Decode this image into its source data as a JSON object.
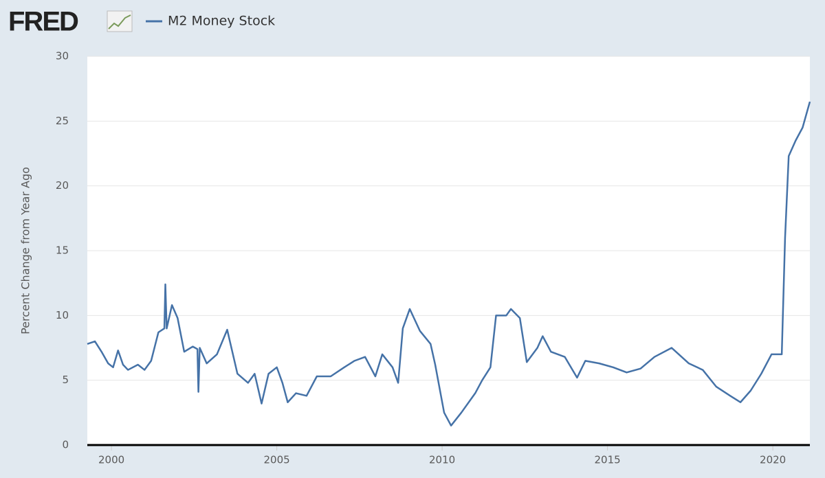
{
  "chart_data": {
    "type": "line",
    "logo": "FRED",
    "ylabel": "Percent Change from Year Ago",
    "x": [
      1999.27,
      1999.5,
      1999.7,
      1999.9,
      2000.05,
      2000.2,
      2000.35,
      2000.5,
      2000.8,
      2001.0,
      2001.2,
      2001.42,
      2001.6,
      2001.63,
      2001.67,
      2001.83,
      2002.0,
      2002.2,
      2002.46,
      2002.6,
      2002.63,
      2002.67,
      2002.88,
      2003.19,
      2003.5,
      2003.81,
      2004.13,
      2004.33,
      2004.54,
      2004.75,
      2005.0,
      2005.17,
      2005.33,
      2005.58,
      2005.9,
      2006.21,
      2006.63,
      2007.04,
      2007.35,
      2007.67,
      2007.98,
      2008.19,
      2008.5,
      2008.67,
      2008.81,
      2009.02,
      2009.33,
      2009.65,
      2009.79,
      2010.06,
      2010.27,
      2010.58,
      2011.0,
      2011.21,
      2011.46,
      2011.63,
      2011.94,
      2012.08,
      2012.35,
      2012.56,
      2012.88,
      2013.04,
      2013.29,
      2013.71,
      2014.08,
      2014.33,
      2014.75,
      2015.17,
      2015.58,
      2016.0,
      2016.42,
      2016.94,
      2017.46,
      2017.88,
      2018.29,
      2018.71,
      2019.02,
      2019.33,
      2019.65,
      2019.96,
      2020.27,
      2020.37,
      2020.48,
      2020.69,
      2020.9,
      2021.12
    ],
    "series": [
      {
        "name": "M2 Money Stock",
        "color": "#4572a7",
        "values": [
          7.8,
          8.0,
          7.2,
          6.3,
          6.0,
          7.3,
          6.2,
          5.8,
          6.2,
          5.8,
          6.5,
          8.7,
          9.0,
          12.4,
          9.0,
          10.8,
          9.8,
          7.2,
          7.6,
          7.4,
          4.1,
          7.5,
          6.3,
          7.0,
          8.9,
          5.5,
          4.8,
          5.5,
          3.2,
          5.5,
          6.0,
          4.8,
          3.3,
          4.0,
          3.8,
          5.3,
          5.3,
          6.0,
          6.5,
          6.8,
          5.3,
          7.0,
          6.0,
          4.8,
          9.0,
          10.5,
          8.8,
          7.8,
          6.2,
          2.5,
          1.5,
          2.5,
          4.0,
          5.0,
          6.0,
          10.0,
          10.0,
          10.5,
          9.8,
          6.4,
          7.5,
          8.4,
          7.2,
          6.8,
          5.2,
          6.5,
          6.3,
          6.0,
          5.6,
          5.9,
          6.8,
          7.5,
          6.3,
          5.8,
          4.5,
          3.8,
          3.3,
          4.2,
          5.5,
          7.0,
          7.0,
          16,
          22.3,
          23.5,
          24.5,
          26.5
        ]
      }
    ],
    "xlim": [
      1999.27,
      2021.12
    ],
    "xticks": [
      2000,
      2005,
      2010,
      2015,
      2020
    ],
    "ylim": [
      0,
      30
    ],
    "yticks": [
      0,
      5,
      10,
      15,
      20,
      25,
      30
    ],
    "grid": true
  }
}
